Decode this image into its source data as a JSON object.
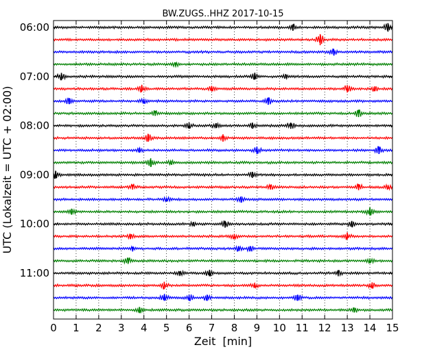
{
  "chart_data": {
    "type": "line",
    "subtype": "dayplot-seismogram",
    "title": "BW.ZUGS..HHZ 2017-10-15",
    "xlabel": "Zeit  [min]",
    "ylabel": "UTC (Lokalzeit = UTC + 02:00)",
    "xlim": [
      0,
      15
    ],
    "x_ticks": [
      "0",
      "1",
      "2",
      "3",
      "4",
      "5",
      "6",
      "7",
      "8",
      "9",
      "10",
      "11",
      "12",
      "13",
      "14",
      "15"
    ],
    "y_tick_labels": [
      "06:00",
      "07:00",
      "08:00",
      "09:00",
      "10:00",
      "11:00"
    ],
    "grid": {
      "vertical_dotted": true
    },
    "row_minutes": 15,
    "trace_colors": [
      "#000000",
      "#ff0000",
      "#0000ff",
      "#008000"
    ],
    "rows": [
      {
        "start": "06:00",
        "events": [
          [
            10.6,
            0.5
          ],
          [
            14.8,
            0.7
          ]
        ]
      },
      {
        "start": "06:15",
        "events": [
          [
            11.8,
            0.9
          ]
        ]
      },
      {
        "start": "06:30",
        "events": [
          [
            12.4,
            0.5
          ]
        ]
      },
      {
        "start": "06:45",
        "events": [
          [
            5.4,
            0.3
          ]
        ]
      },
      {
        "start": "07:00",
        "events": [
          [
            0.35,
            0.6
          ],
          [
            8.9,
            0.5
          ],
          [
            10.3,
            0.3
          ]
        ]
      },
      {
        "start": "07:15",
        "events": [
          [
            3.9,
            0.5
          ],
          [
            7.0,
            0.4
          ],
          [
            13.0,
            0.6
          ],
          [
            14.2,
            0.4
          ]
        ]
      },
      {
        "start": "07:30",
        "events": [
          [
            0.7,
            0.5
          ],
          [
            4.0,
            0.4
          ],
          [
            9.5,
            0.6
          ]
        ]
      },
      {
        "start": "07:45",
        "events": [
          [
            4.5,
            0.4
          ],
          [
            13.5,
            0.6
          ]
        ]
      },
      {
        "start": "08:00",
        "events": [
          [
            6.0,
            0.5
          ],
          [
            7.2,
            0.4
          ],
          [
            8.8,
            0.5
          ],
          [
            10.5,
            0.5
          ]
        ]
      },
      {
        "start": "08:15",
        "events": [
          [
            4.2,
            0.6
          ],
          [
            7.5,
            0.6
          ]
        ]
      },
      {
        "start": "08:30",
        "events": [
          [
            3.8,
            0.4
          ],
          [
            9.0,
            0.6
          ],
          [
            14.4,
            0.6
          ]
        ]
      },
      {
        "start": "08:45",
        "events": [
          [
            4.3,
            0.7
          ],
          [
            5.2,
            0.3
          ]
        ]
      },
      {
        "start": "09:00",
        "events": [
          [
            0.1,
            0.6
          ],
          [
            8.8,
            0.5
          ]
        ]
      },
      {
        "start": "09:15",
        "events": [
          [
            3.5,
            0.4
          ],
          [
            9.6,
            0.4
          ],
          [
            13.5,
            0.5
          ],
          [
            14.8,
            0.3
          ]
        ]
      },
      {
        "start": "09:30",
        "events": [
          [
            5.0,
            0.3
          ],
          [
            8.3,
            0.5
          ]
        ]
      },
      {
        "start": "09:45",
        "events": [
          [
            0.8,
            0.5
          ],
          [
            14.0,
            0.6
          ]
        ]
      },
      {
        "start": "10:00",
        "events": [
          [
            6.2,
            0.3
          ],
          [
            7.6,
            0.5
          ],
          [
            13.2,
            0.5
          ]
        ]
      },
      {
        "start": "10:15",
        "events": [
          [
            3.4,
            0.4
          ],
          [
            8.0,
            0.4
          ],
          [
            13.0,
            0.5
          ]
        ]
      },
      {
        "start": "10:30",
        "events": [
          [
            3.5,
            0.3
          ],
          [
            8.2,
            0.4
          ],
          [
            8.7,
            0.4
          ]
        ]
      },
      {
        "start": "10:45",
        "events": [
          [
            3.3,
            0.5
          ],
          [
            14.0,
            0.4
          ]
        ]
      },
      {
        "start": "11:00",
        "events": [
          [
            5.6,
            0.3
          ],
          [
            6.9,
            0.5
          ],
          [
            12.6,
            0.5
          ]
        ]
      },
      {
        "start": "11:15",
        "events": [
          [
            4.9,
            0.6
          ],
          [
            8.9,
            0.4
          ],
          [
            14.1,
            0.5
          ]
        ]
      },
      {
        "start": "11:30",
        "events": [
          [
            4.9,
            0.5
          ],
          [
            6.0,
            0.5
          ],
          [
            6.8,
            0.5
          ],
          [
            10.8,
            0.5
          ]
        ]
      },
      {
        "start": "11:45",
        "events": [
          [
            3.8,
            0.5
          ],
          [
            13.3,
            0.4
          ]
        ]
      }
    ]
  }
}
